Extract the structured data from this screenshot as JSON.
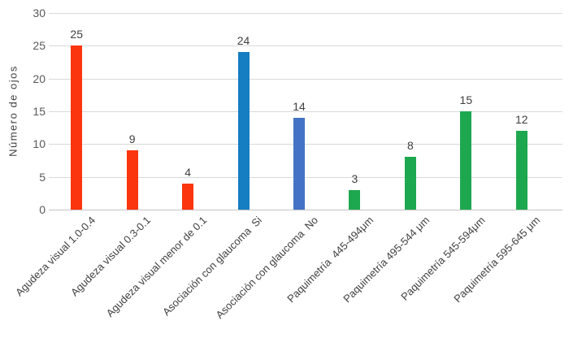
{
  "chart_data": {
    "type": "bar",
    "title": "",
    "xlabel": "",
    "ylabel": "Número de ojos",
    "ylim": [
      0,
      30
    ],
    "yticks": [
      0,
      5,
      10,
      15,
      20,
      25,
      30
    ],
    "grid": true,
    "legend": false,
    "categories": [
      "Agudeza visual 1.0-0.4",
      "Agudeza visual 0.3-0.1",
      "Agudeza visual menor de 0.1",
      "Asociación con glaucoma  Si",
      "Asociación con glaucoma  No",
      "Paquimetría  445-494μm",
      "Paquimetría 495-544 μm",
      "Paquimetría 545-594μm",
      "Paquimetría 595-645 μm"
    ],
    "values": [
      25,
      9,
      4,
      24,
      14,
      3,
      8,
      15,
      12
    ],
    "bar_colors": [
      "#fb350d",
      "#fb350d",
      "#fb350d",
      "#157dc2",
      "#4472c4",
      "#1da84f",
      "#1da84f",
      "#1da84f",
      "#1da84f"
    ],
    "colors": {
      "red_series": "#fb350d",
      "blue_dark": "#157dc2",
      "blue_light": "#4472c4",
      "green_series": "#1da84f",
      "gridline": "#d9d9d9",
      "axis_line": "#c3c3c3",
      "tick_text": "#595959",
      "label_text": "#404040",
      "background": "#ffffff"
    }
  }
}
